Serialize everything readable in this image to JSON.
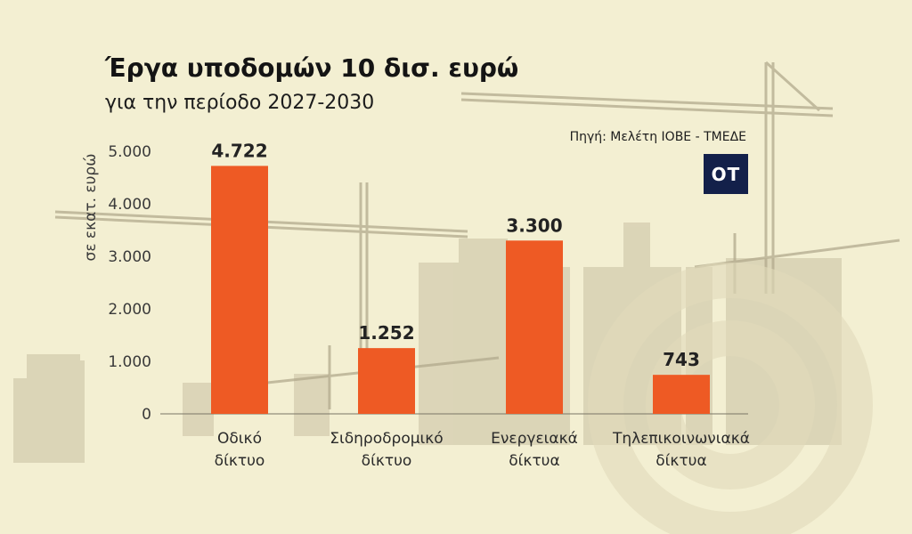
{
  "header": {
    "title": "Έργα υποδομών 10 δισ. ευρώ",
    "subtitle": "για την περίοδο 2027-2030",
    "source": "Πηγή: Μελέτη ΙΟΒΕ - ΤΜΕΔΕ",
    "logo_text": "OT"
  },
  "colors": {
    "background": "#f3efd2",
    "bar": "#ee5a24",
    "text": "#1c1c1c",
    "logo": "#13204a",
    "silhouette": "#b5ad90"
  },
  "chart_data": {
    "type": "bar",
    "title": "Έργα υποδομών 10 δισ. ευρώ",
    "subtitle": "για την περίοδο 2027-2030",
    "ylabel": "σε εκατ. ευρώ",
    "xlabel": "",
    "ylim": [
      0,
      5000
    ],
    "yticks": [
      0,
      1000,
      2000,
      3000,
      4000,
      5000
    ],
    "ytick_labels": [
      "0",
      "1.000",
      "2.000",
      "3.000",
      "4.000",
      "5.000"
    ],
    "categories": [
      [
        "Οδικό",
        "δίκτυο"
      ],
      [
        "Σιδηροδρομικό",
        "δίκτυο"
      ],
      [
        "Ενεργειακά",
        "δίκτυα"
      ],
      [
        "Τηλεπικοινωνιακά",
        "δίκτυα"
      ]
    ],
    "values": [
      4722,
      1252,
      3300,
      743
    ],
    "value_labels": [
      "4.722",
      "1.252",
      "3.300",
      "743"
    ],
    "grid": false,
    "legend": "none"
  }
}
